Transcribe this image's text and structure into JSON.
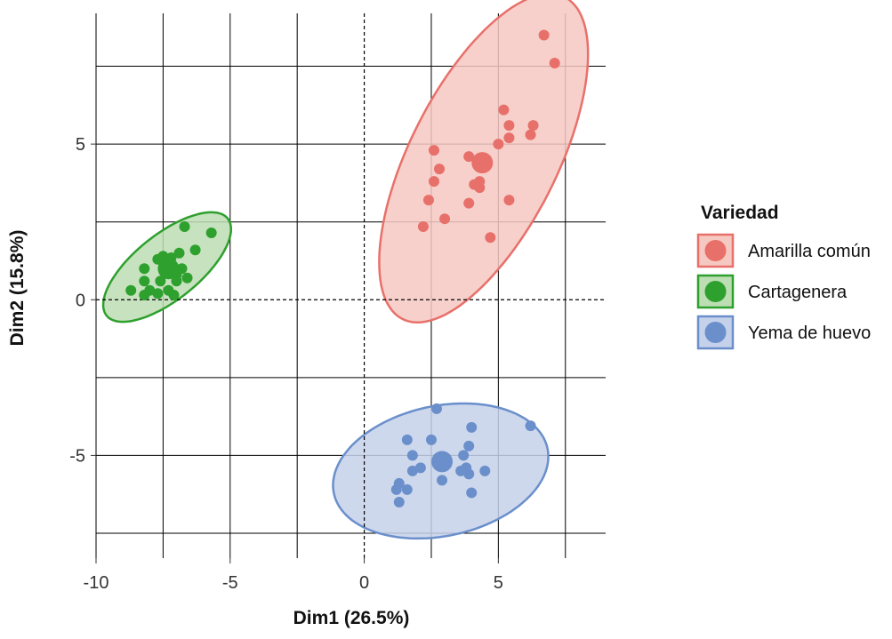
{
  "chart_data": {
    "type": "scatter",
    "xlabel": "Dim1 (26.5%)",
    "ylabel": "Dim2 (15.8%)",
    "xlim": [
      -10,
      9
    ],
    "ylim": [
      -8.3,
      9.2
    ],
    "x_ticks": [
      -10,
      -5,
      0,
      5
    ],
    "y_ticks": [
      -5,
      0,
      5
    ],
    "x_tick_labels": [
      "-10",
      "-5",
      "0",
      "5"
    ],
    "y_tick_labels": [
      "-5",
      "0",
      "5"
    ],
    "grid": true,
    "legend_title": "Variedad",
    "legend_position": "right",
    "series": [
      {
        "name": "Amarilla común",
        "color": "#E8706A",
        "fill": "#F6C8C2",
        "centroid": [
          4.4,
          4.4
        ],
        "ellipse": {
          "center": [
            4.45,
            4.55
          ],
          "rx": 6.0,
          "ry": 2.65,
          "angle_deg": 58
        },
        "points": [
          [
            6.7,
            8.5
          ],
          [
            7.1,
            7.6
          ],
          [
            5.2,
            6.1
          ],
          [
            5.4,
            5.6
          ],
          [
            6.3,
            5.6
          ],
          [
            6.2,
            5.3
          ],
          [
            5.4,
            5.2
          ],
          [
            5.0,
            5.0
          ],
          [
            2.6,
            4.8
          ],
          [
            3.9,
            4.6
          ],
          [
            2.8,
            4.2
          ],
          [
            2.6,
            3.8
          ],
          [
            4.3,
            3.8
          ],
          [
            4.1,
            3.7
          ],
          [
            4.3,
            3.6
          ],
          [
            2.4,
            3.2
          ],
          [
            3.9,
            3.1
          ],
          [
            5.4,
            3.2
          ],
          [
            3.0,
            2.6
          ],
          [
            2.2,
            2.35
          ],
          [
            4.7,
            2.0
          ]
        ]
      },
      {
        "name": "Cartagenera",
        "color": "#2EA02E",
        "fill": "#BDDDB3",
        "centroid": [
          -7.3,
          1.0
        ],
        "ellipse": {
          "center": [
            -7.35,
            1.05
          ],
          "rx": 2.75,
          "ry": 1.1,
          "angle_deg": 33
        },
        "points": [
          [
            -6.7,
            2.35
          ],
          [
            -5.7,
            2.15
          ],
          [
            -6.3,
            1.6
          ],
          [
            -6.9,
            1.5
          ],
          [
            -7.5,
            1.4
          ],
          [
            -7.2,
            1.35
          ],
          [
            -7.7,
            1.3
          ],
          [
            -8.2,
            1.0
          ],
          [
            -7.4,
            1.0
          ],
          [
            -6.8,
            1.0
          ],
          [
            -7.0,
            0.8
          ],
          [
            -6.6,
            0.7
          ],
          [
            -8.2,
            0.6
          ],
          [
            -7.6,
            0.6
          ],
          [
            -7.0,
            0.6
          ],
          [
            -8.7,
            0.3
          ],
          [
            -8.0,
            0.3
          ],
          [
            -7.3,
            0.3
          ],
          [
            -8.2,
            0.15
          ],
          [
            -7.7,
            0.2
          ],
          [
            -7.1,
            0.15
          ]
        ]
      },
      {
        "name": "Yema de huevo",
        "color": "#6A8FCB",
        "fill": "#C5D1EA",
        "centroid": [
          2.9,
          -5.2
        ],
        "ellipse": {
          "center": [
            2.85,
            -5.5
          ],
          "rx": 4.05,
          "ry": 2.1,
          "angle_deg": 9
        },
        "points": [
          [
            2.7,
            -3.5
          ],
          [
            6.2,
            -4.05
          ],
          [
            4.0,
            -4.1
          ],
          [
            1.6,
            -4.5
          ],
          [
            2.5,
            -4.5
          ],
          [
            3.9,
            -4.7
          ],
          [
            1.8,
            -5.0
          ],
          [
            3.7,
            -5.0
          ],
          [
            3.0,
            -5.1
          ],
          [
            2.1,
            -5.4
          ],
          [
            1.8,
            -5.5
          ],
          [
            3.8,
            -5.4
          ],
          [
            4.5,
            -5.5
          ],
          [
            3.6,
            -5.5
          ],
          [
            3.9,
            -5.6
          ],
          [
            1.3,
            -5.9
          ],
          [
            2.9,
            -5.8
          ],
          [
            1.2,
            -6.1
          ],
          [
            1.6,
            -6.1
          ],
          [
            4.0,
            -6.2
          ],
          [
            1.3,
            -6.5
          ]
        ]
      }
    ]
  }
}
